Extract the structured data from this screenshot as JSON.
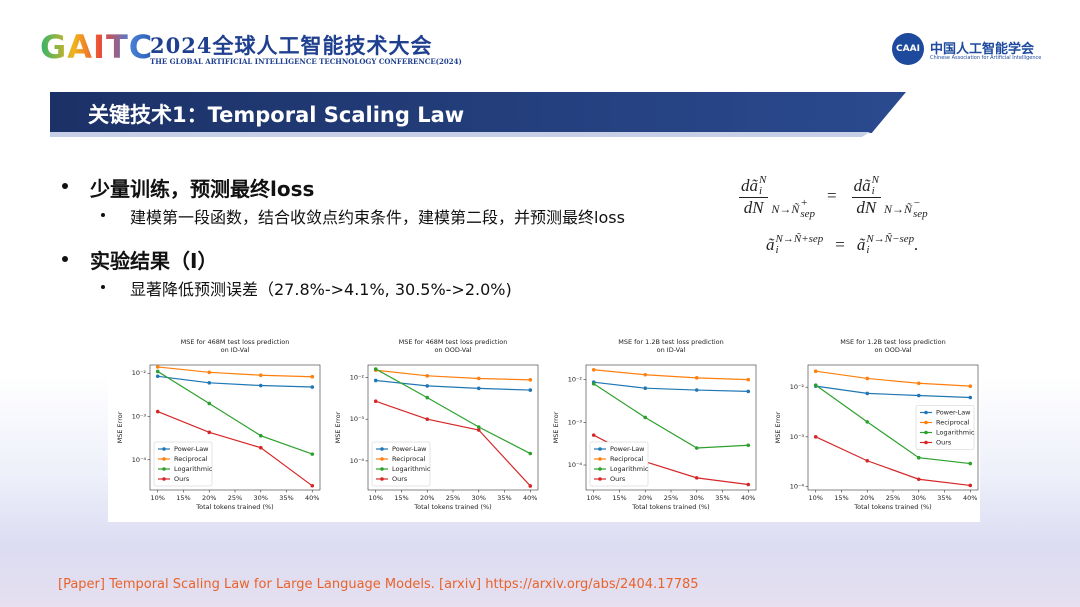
{
  "header": {
    "logo": "GAITC",
    "title": "2024全球人工智能技术大会",
    "subtitle": "THE GLOBAL ARTIFICIAL INTELLIGENCE TECHNOLOGY CONFERENCE(2024)",
    "org_logo": "CAAI",
    "org": "中国人工智能学会",
    "org_en": "Chinese Association for Artificial Intelligence"
  },
  "slide_title": "关键技术1：Temporal Scaling Law",
  "bullets": [
    {
      "text": "少量训练，预测最终loss",
      "sub": [
        "建模第一段函数，结合收敛点约束条件，建模第二段，并预测最终loss"
      ]
    },
    {
      "text": "实验结果（I）",
      "sub": [
        "显著降低预测误差（27.8%->4.1%, 30.5%->2.0%)"
      ]
    }
  ],
  "formula": {
    "d": "dã",
    "a": "ã",
    "N": "N",
    "i": "i",
    "den": "dN",
    "limit": "N→Ñ",
    "sep": "sep",
    "plus": "+",
    "minus": "−",
    "eq": "=",
    "period": "."
  },
  "chart_data": [
    {
      "type": "line",
      "title": "MSE for 468M test loss prediction",
      "subtitle": "on ID-Val",
      "xlabel": "Total tokens trained (%)",
      "ylabel": "MSE Error",
      "yscale": "log",
      "grid": false,
      "legend": "lower left",
      "x": [
        10,
        20,
        30,
        40
      ],
      "xlim": [
        8.5,
        41.5
      ],
      "xticks": [
        {
          "value": 10,
          "label": "10%"
        },
        {
          "value": 15,
          "label": "15%"
        },
        {
          "value": 20,
          "label": "20%"
        },
        {
          "value": 25,
          "label": "25%"
        },
        {
          "value": 30,
          "label": "30%"
        },
        {
          "value": 35,
          "label": "35%"
        },
        {
          "value": 40,
          "label": "40%"
        }
      ],
      "ylim": [
        2e-05,
        0.0155
      ],
      "yticks": [
        {
          "value": 0.01,
          "label": "10⁻²"
        },
        {
          "value": 0.001,
          "label": "10⁻³"
        },
        {
          "value": 0.0001,
          "label": "10⁻⁴"
        }
      ],
      "series": [
        {
          "name": "Power-Law",
          "color": "#1f77b4",
          "values": [
            0.0085,
            0.006,
            0.0052,
            0.0048
          ]
        },
        {
          "name": "Reciprocal",
          "color": "#ff7f0e",
          "values": [
            0.014,
            0.0105,
            0.009,
            0.0083
          ]
        },
        {
          "name": "Logarithmic",
          "color": "#2ca02c",
          "values": [
            0.011,
            0.002,
            0.00036,
            0.000135
          ]
        },
        {
          "name": "Ours",
          "color": "#d62728",
          "values": [
            0.0013,
            0.00043,
            0.00019,
            2.5e-05
          ]
        }
      ]
    },
    {
      "type": "line",
      "title": "MSE for 468M test loss prediction",
      "subtitle": "on OOD-Val",
      "xlabel": "Total tokens trained (%)",
      "ylabel": "MSE Error",
      "yscale": "log",
      "grid": false,
      "legend": "lower left",
      "x": [
        10,
        20,
        30,
        40
      ],
      "xlim": [
        8.5,
        41.5
      ],
      "xticks": [
        {
          "value": 10,
          "label": "10%"
        },
        {
          "value": 15,
          "label": "15%"
        },
        {
          "value": 20,
          "label": "20%"
        },
        {
          "value": 25,
          "label": "25%"
        },
        {
          "value": 30,
          "label": "30%"
        },
        {
          "value": 35,
          "label": "35%"
        },
        {
          "value": 40,
          "label": "40%"
        }
      ],
      "ylim": [
        2e-05,
        0.02
      ],
      "yticks": [
        {
          "value": 0.01,
          "label": "10⁻²"
        },
        {
          "value": 0.001,
          "label": "10⁻³"
        },
        {
          "value": 0.0001,
          "label": "10⁻⁴"
        }
      ],
      "series": [
        {
          "name": "Power-Law",
          "color": "#1f77b4",
          "values": [
            0.0085,
            0.0063,
            0.0055,
            0.005
          ]
        },
        {
          "name": "Reciprocal",
          "color": "#ff7f0e",
          "values": [
            0.015,
            0.011,
            0.0095,
            0.0088
          ]
        },
        {
          "name": "Logarithmic",
          "color": "#2ca02c",
          "values": [
            0.016,
            0.0033,
            0.00065,
            0.00015
          ]
        },
        {
          "name": "Ours",
          "color": "#d62728",
          "values": [
            0.0027,
            0.001,
            0.00055,
            2.5e-05
          ]
        }
      ]
    },
    {
      "type": "line",
      "title": "MSE for 1.2B test loss prediction",
      "subtitle": "on ID-Val",
      "xlabel": "Total tokens trained (%)",
      "ylabel": "MSE Error",
      "yscale": "log",
      "grid": false,
      "legend": "lower left",
      "x": [
        10,
        20,
        30,
        40
      ],
      "xlim": [
        8.5,
        41.5
      ],
      "xticks": [
        {
          "value": 10,
          "label": "10%"
        },
        {
          "value": 15,
          "label": "15%"
        },
        {
          "value": 20,
          "label": "20%"
        },
        {
          "value": 25,
          "label": "25%"
        },
        {
          "value": 30,
          "label": "30%"
        },
        {
          "value": 35,
          "label": "35%"
        },
        {
          "value": 40,
          "label": "40%"
        }
      ],
      "ylim": [
        2.6e-05,
        0.022
      ],
      "yticks": [
        {
          "value": 0.01,
          "label": "10⁻²"
        },
        {
          "value": 0.001,
          "label": "10⁻³"
        },
        {
          "value": 0.0001,
          "label": "10⁻⁴"
        }
      ],
      "series": [
        {
          "name": "Power-Law",
          "color": "#1f77b4",
          "values": [
            0.0087,
            0.0063,
            0.0057,
            0.0053
          ]
        },
        {
          "name": "Reciprocal",
          "color": "#ff7f0e",
          "values": [
            0.017,
            0.013,
            0.011,
            0.01
          ]
        },
        {
          "name": "Logarithmic",
          "color": "#2ca02c",
          "values": [
            0.008,
            0.0013,
            0.00025,
            0.00029
          ]
        },
        {
          "name": "Ours",
          "color": "#d62728",
          "values": [
            0.0005,
            0.00012,
            5e-05,
            3.5e-05
          ]
        }
      ]
    },
    {
      "type": "line",
      "title": "MSE for 1.2B test loss prediction",
      "subtitle": "on OOD-Val",
      "xlabel": "Total tokens trained (%)",
      "ylabel": "MSE Error",
      "yscale": "log",
      "grid": false,
      "legend": "center right",
      "x": [
        10,
        20,
        30,
        40
      ],
      "xlim": [
        8.5,
        41.5
      ],
      "xticks": [
        {
          "value": 10,
          "label": "10%"
        },
        {
          "value": 15,
          "label": "15%"
        },
        {
          "value": 20,
          "label": "20%"
        },
        {
          "value": 25,
          "label": "25%"
        },
        {
          "value": 30,
          "label": "30%"
        },
        {
          "value": 35,
          "label": "35%"
        },
        {
          "value": 40,
          "label": "40%"
        }
      ],
      "ylim": [
        8.5e-05,
        0.028
      ],
      "yticks": [
        {
          "value": 0.01,
          "label": "10⁻²"
        },
        {
          "value": 0.001,
          "label": "10⁻³"
        },
        {
          "value": 0.0001,
          "label": "10⁻⁴"
        }
      ],
      "series": [
        {
          "name": "Power-Law",
          "color": "#1f77b4",
          "values": [
            0.0105,
            0.0075,
            0.0068,
            0.0062
          ]
        },
        {
          "name": "Reciprocal",
          "color": "#ff7f0e",
          "values": [
            0.021,
            0.015,
            0.012,
            0.0105
          ]
        },
        {
          "name": "Logarithmic",
          "color": "#2ca02c",
          "values": [
            0.011,
            0.002,
            0.00038,
            0.00029
          ]
        },
        {
          "name": "Ours",
          "color": "#d62728",
          "values": [
            0.001,
            0.00033,
            0.00014,
            0.000105
          ]
        }
      ]
    }
  ],
  "footer": "[Paper] Temporal Scaling Law for Large Language Models. [arxiv] https://arxiv.org/abs/2404.17785"
}
